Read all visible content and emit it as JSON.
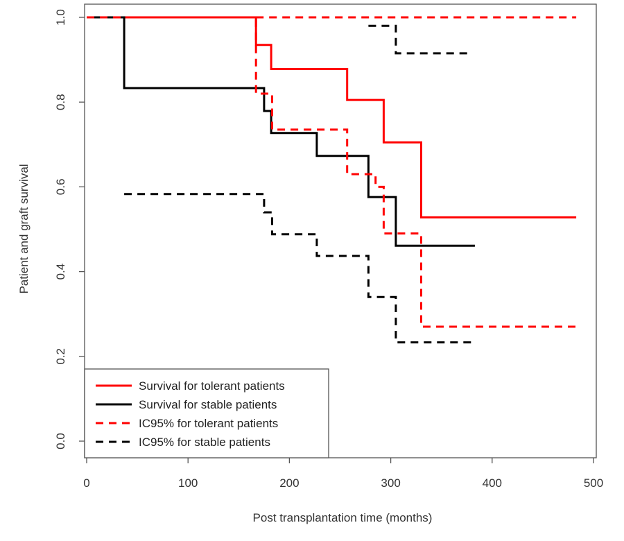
{
  "chart_data": {
    "type": "line",
    "title": "",
    "xlabel": "Post transplantation time (months)",
    "ylabel": "Patient and graft survival",
    "xlim": [
      0,
      500
    ],
    "ylim": [
      0,
      1
    ],
    "x_ticks": [
      0,
      100,
      200,
      300,
      400,
      500
    ],
    "y_ticks": [
      0.0,
      0.2,
      0.4,
      0.6,
      0.8,
      1.0
    ],
    "x_tick_labels": [
      "0",
      "100",
      "200",
      "300",
      "400",
      "500"
    ],
    "y_tick_labels": [
      "0.0",
      "0.2",
      "0.4",
      "0.6",
      "0.8",
      "1.0"
    ],
    "grid": false,
    "legend_position": "bottom-left",
    "series": [
      {
        "name": "Survival for tolerant patients",
        "color": "#ff0000",
        "style": "solid",
        "x": [
          0,
          167,
          182,
          257,
          293,
          330,
          483
        ],
        "y": [
          1.0,
          0.935,
          0.878,
          0.805,
          0.705,
          0.528,
          0.528
        ]
      },
      {
        "name": "Survival for stable patients",
        "color": "#000000",
        "style": "solid",
        "x": [
          0,
          37,
          175,
          182,
          227,
          278,
          305,
          383
        ],
        "y": [
          1.0,
          0.833,
          0.779,
          0.727,
          0.673,
          0.576,
          0.461,
          0.461
        ]
      },
      {
        "name": "IC95% for tolerant patients",
        "color": "#ff0000",
        "style": "dashed",
        "x": [
          0,
          167,
          183,
          257,
          285,
          293,
          330,
          483
        ],
        "y": [
          1.0,
          0.82,
          0.735,
          0.63,
          0.6,
          0.49,
          0.27,
          0.27
        ]
      },
      {
        "name": "IC95% for stable patients",
        "color": "#000000",
        "style": "dashed",
        "x": [
          37,
          175,
          183,
          227,
          278,
          305,
          383
        ],
        "y": [
          0.583,
          0.54,
          0.488,
          0.437,
          0.34,
          0.233,
          0.233
        ]
      },
      {
        "name": "",
        "color": "#ff0000",
        "style": "dashed",
        "x": [
          167,
          483
        ],
        "y": [
          1.0,
          1.0
        ]
      },
      {
        "name": "",
        "color": "#000000",
        "style": "dashed",
        "x": [
          278,
          305,
          380
        ],
        "y": [
          0.98,
          0.915,
          0.915
        ]
      }
    ]
  }
}
